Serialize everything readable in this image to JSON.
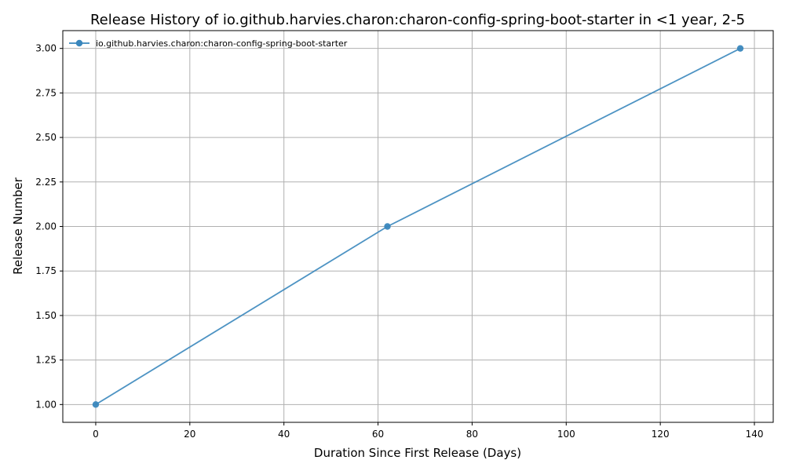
{
  "chart_data": {
    "type": "line",
    "title": "Release History of io.github.harvies.charon:charon-config-spring-boot-starter in <1 year, 2-5",
    "xlabel": "Duration Since First Release (Days)",
    "ylabel": "Release Number",
    "xlim": [
      -7,
      144
    ],
    "ylim": [
      0.9,
      3.1
    ],
    "xticks": [
      0,
      20,
      40,
      60,
      80,
      100,
      120,
      140
    ],
    "yticks": [
      1.0,
      1.25,
      1.5,
      1.75,
      2.0,
      2.25,
      2.5,
      2.75,
      3.0
    ],
    "ytick_labels": [
      "1.00",
      "1.25",
      "1.50",
      "1.75",
      "2.00",
      "2.25",
      "2.50",
      "2.75",
      "3.00"
    ],
    "grid": true,
    "legend_position": "top-left",
    "series": [
      {
        "name": "io.github.harvies.charon:charon-config-spring-boot-starter",
        "color": "#3a87bd",
        "x": [
          0,
          62,
          137
        ],
        "y": [
          1,
          2,
          3
        ]
      }
    ]
  }
}
